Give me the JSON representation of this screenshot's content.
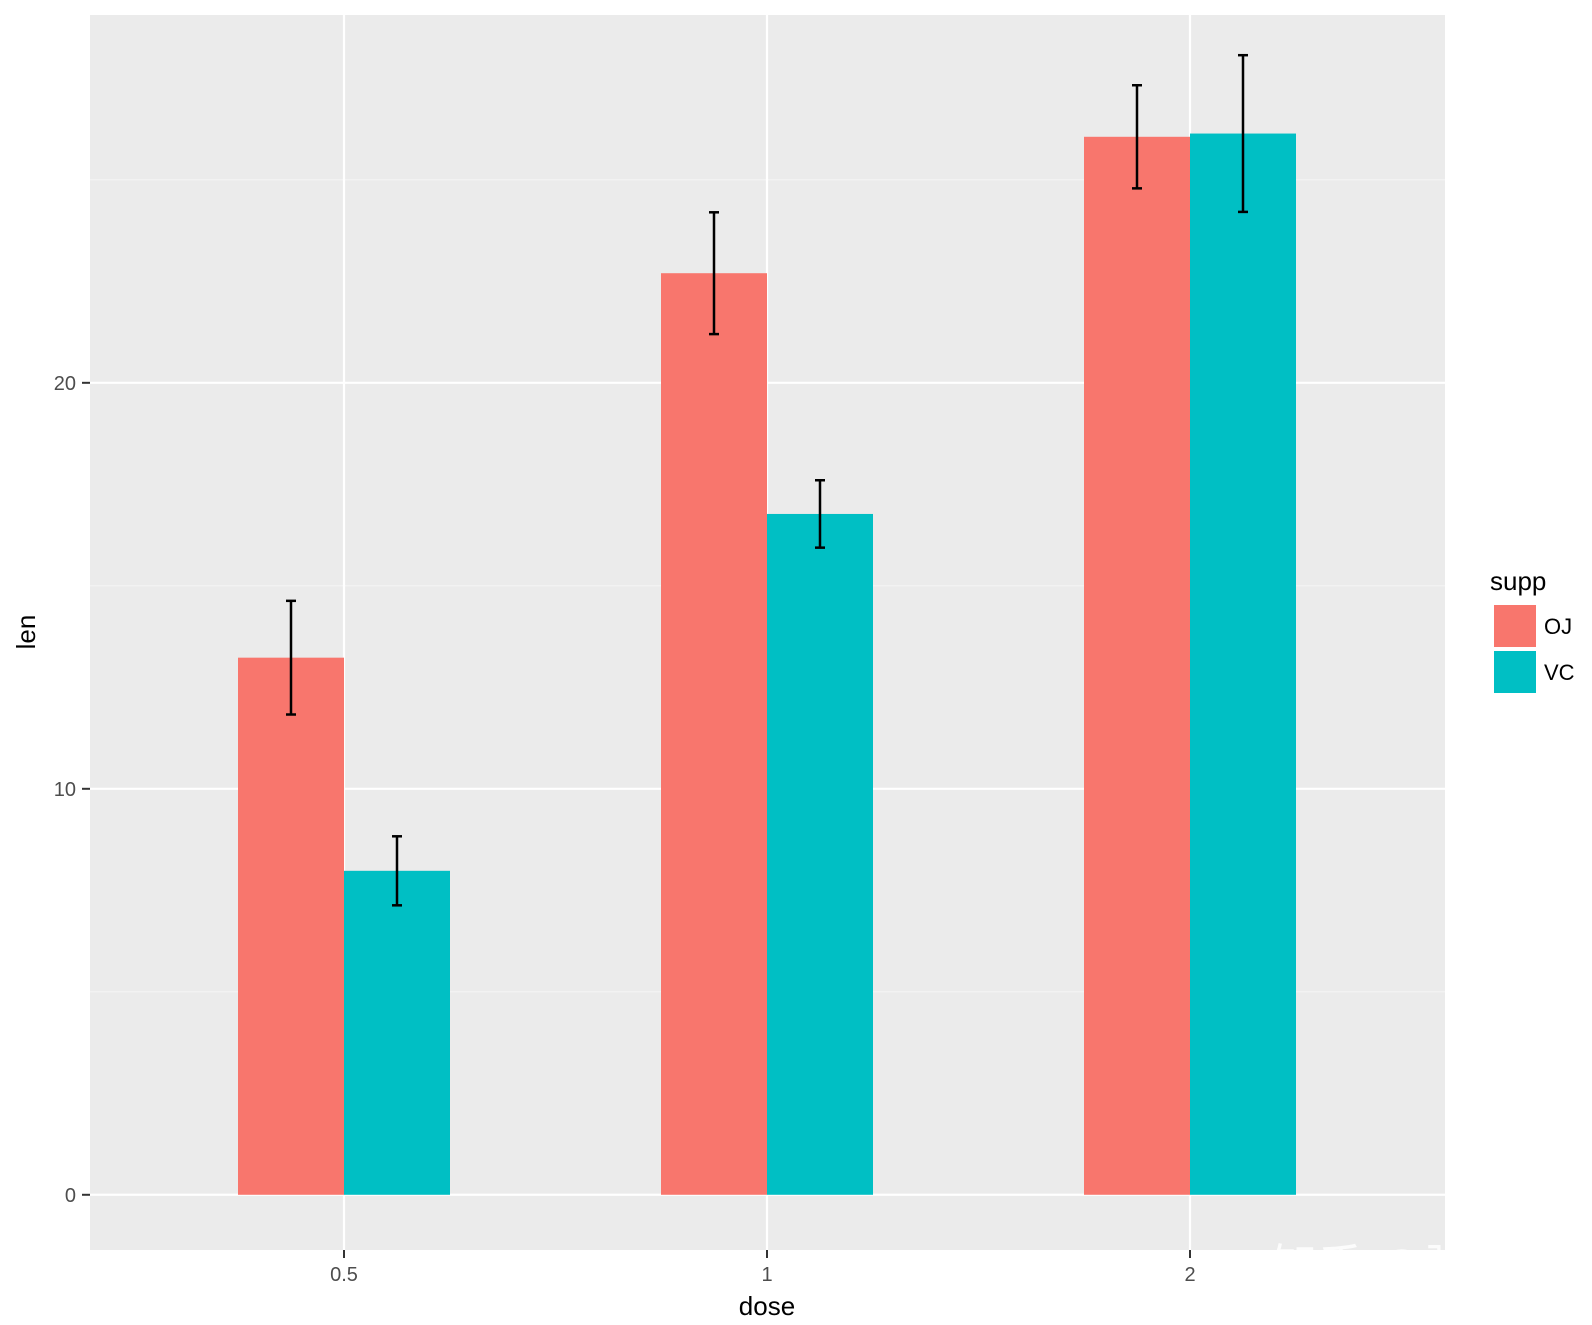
{
  "chart_data": {
    "type": "bar",
    "categories": [
      "0.5",
      "1",
      "2"
    ],
    "xlabel": "dose",
    "ylabel": "len",
    "ylim": [
      -1.36,
      29.06
    ],
    "yticks": [
      0,
      10,
      20
    ],
    "grid": true,
    "legend": {
      "title": "supp",
      "placement": "right"
    },
    "series": [
      {
        "name": "OJ",
        "color": "#F8766D",
        "values": [
          13.23,
          22.7,
          26.06
        ],
        "error_low": [
          11.83,
          21.2,
          24.79
        ],
        "error_high": [
          14.63,
          24.2,
          27.33
        ]
      },
      {
        "name": "VC",
        "color": "#00BFC4",
        "values": [
          7.98,
          16.77,
          26.14
        ],
        "error_low": [
          7.13,
          15.94,
          24.21
        ],
        "error_high": [
          8.83,
          17.6,
          28.07
        ]
      }
    ],
    "watermark": "知乎 @张了了"
  },
  "colors": {
    "panel_background": "#EBEBEB",
    "grid_major": "#FFFFFF",
    "grid_minor": "#F5F5F5",
    "error_bar": "#000000"
  }
}
